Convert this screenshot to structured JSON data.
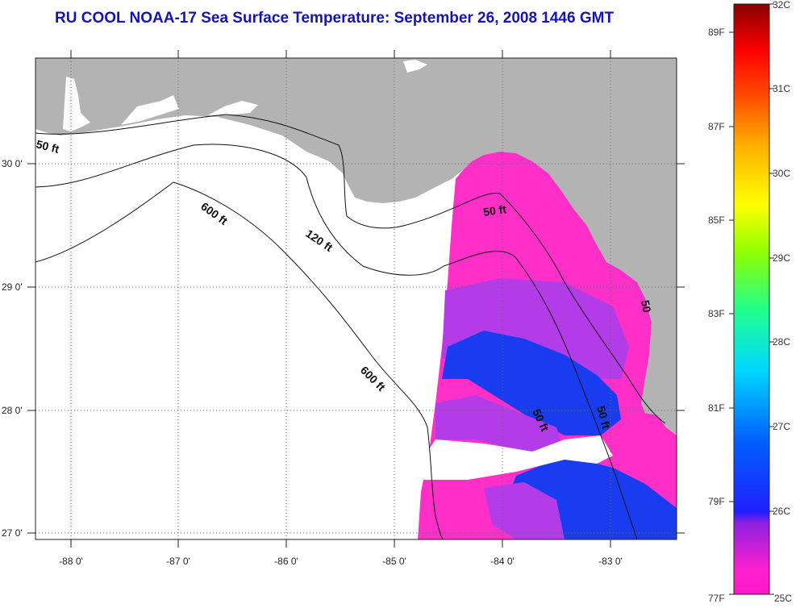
{
  "title": "RU COOL  NOAA-17  Sea Surface Temperature:  September 26, 2008 1446 GMT",
  "map": {
    "lon_ticks": [
      "-88 0'",
      "-87 0'",
      "-86 0'",
      "-85 0'",
      "-84 0'",
      "-83 0'"
    ],
    "lat_ticks": [
      "30 0'",
      "29 0'",
      "28 0'",
      "27 0'"
    ],
    "isobath_labels": [
      "50 ft",
      "600 ft",
      "120 ft",
      "50 ft",
      "600 ft",
      "50 ft",
      "50 ft",
      "50"
    ],
    "land_color": "#b3b3b3",
    "no_data_color": "#ffffff",
    "water_colors": {
      "warm": "#ff2fc8",
      "violet": "#b43ce8",
      "cool": "#1a3cf0"
    }
  },
  "colorbar": {
    "celsius_labels": [
      "32C",
      "31C",
      "30C",
      "29C",
      "28C",
      "27C",
      "26C",
      "25C"
    ],
    "fahrenheit_labels": [
      "89F",
      "87F",
      "85F",
      "83F",
      "81F",
      "79F",
      "77F"
    ]
  }
}
